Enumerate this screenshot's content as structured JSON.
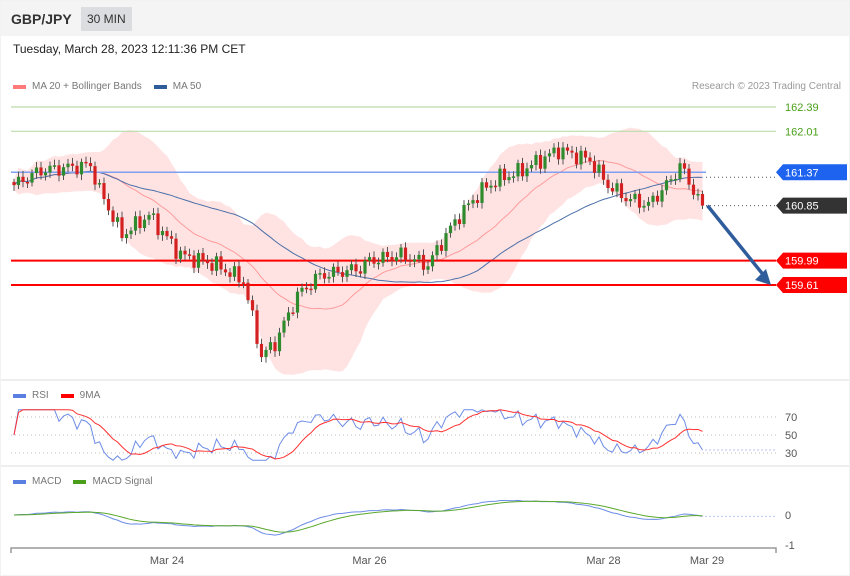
{
  "header": {
    "symbol": "GBP/JPY",
    "timeframe": "30 MIN"
  },
  "date": "Tuesday, March 28, 2023 12:11:36 PM CET",
  "copyright": "Research © 2023 Trading Central",
  "legend_main": [
    {
      "label": "MA 20 + Bollinger Bands",
      "color": "#ff7b7b"
    },
    {
      "label": "MA 50",
      "color": "#2f5d9c"
    }
  ],
  "legend_rsi": [
    {
      "label": "RSI",
      "color": "#5b7fe0"
    },
    {
      "label": "9MA",
      "color": "#ff0000"
    }
  ],
  "legend_macd": [
    {
      "label": "MACD",
      "color": "#5b7fe0"
    },
    {
      "label": "MACD Signal",
      "color": "#4a9e1a"
    }
  ],
  "chart_data": {
    "type": "candlestick",
    "price_range": [
      158.2,
      162.6
    ],
    "levels": [
      {
        "value": "162.39",
        "price": 162.39,
        "kind": "resistance",
        "color": "#4aa01a"
      },
      {
        "value": "162.01",
        "price": 162.01,
        "kind": "resistance",
        "color": "#4aa01a"
      },
      {
        "value": "161.37",
        "price": 161.37,
        "kind": "pivot",
        "color": "#1e62f0"
      },
      {
        "value": "160.85",
        "price": 160.85,
        "kind": "last",
        "color": "#333333"
      },
      {
        "value": "159.99",
        "price": 159.99,
        "kind": "support",
        "color": "#ff0000"
      },
      {
        "value": "159.61",
        "price": 159.61,
        "kind": "support",
        "color": "#ff0000"
      }
    ],
    "candle_count": 154,
    "price_path": [
      [
        0,
        161.17
      ],
      [
        6,
        161.4
      ],
      [
        17,
        161.48
      ],
      [
        19,
        161.09
      ],
      [
        24,
        160.39
      ],
      [
        30,
        160.7
      ],
      [
        37,
        160.08
      ],
      [
        45,
        159.92
      ],
      [
        51,
        159.68
      ],
      [
        55,
        158.5
      ],
      [
        58,
        158.7
      ],
      [
        63,
        159.45
      ],
      [
        68,
        159.76
      ],
      [
        77,
        159.87
      ],
      [
        79,
        159.99
      ],
      [
        86,
        160.08
      ],
      [
        92,
        159.92
      ],
      [
        96,
        160.39
      ],
      [
        99,
        160.7
      ],
      [
        104,
        161.09
      ],
      [
        108,
        161.28
      ],
      [
        112,
        161.37
      ],
      [
        117,
        161.56
      ],
      [
        121,
        161.72
      ],
      [
        128,
        161.56
      ],
      [
        132,
        161.17
      ],
      [
        136,
        160.97
      ],
      [
        141,
        160.86
      ],
      [
        146,
        161.25
      ],
      [
        148,
        161.48
      ],
      [
        151,
        161.09
      ],
      [
        153,
        160.85
      ]
    ],
    "rsi_axis": {
      "ticks": [
        "70",
        "50",
        "30"
      ],
      "values": [
        70,
        50,
        30
      ]
    },
    "macd_axis": {
      "ticks": [
        "0",
        "-1"
      ],
      "values": [
        0,
        -1
      ]
    },
    "x_labels": [
      {
        "label": "Mar 24",
        "index": 34
      },
      {
        "label": "Mar 26",
        "index": 79
      },
      {
        "label": "Mar 28",
        "index": 131
      },
      {
        "label": "Mar 29",
        "index": 154
      }
    ],
    "forecast": {
      "from": 160.85,
      "to": 159.61
    }
  }
}
